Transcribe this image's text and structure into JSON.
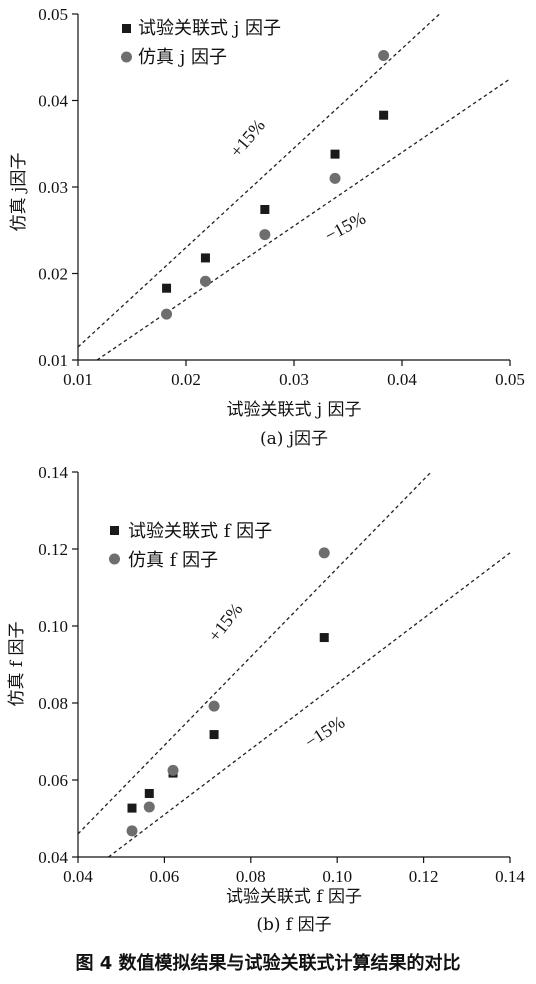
{
  "chart_data": [
    {
      "type": "scatter",
      "xlabel": "试验关联式 j 因子",
      "ylabel": "仿真 j因子",
      "xlim": [
        0.01,
        0.05
      ],
      "ylim": [
        0.01,
        0.05
      ],
      "xticks": [
        "0.01",
        "0.02",
        "0.03",
        "0.04",
        "0.05"
      ],
      "yticks": [
        "0.01",
        "0.02",
        "0.03",
        "0.04",
        "0.05"
      ],
      "grid": false,
      "legend_position": "top-left",
      "series": [
        {
          "name": "试验关联式 j 因子",
          "marker": "square",
          "color": "#1a1a1a",
          "x": [
            0.0182,
            0.0218,
            0.0273,
            0.0338,
            0.0383
          ],
          "y": [
            0.0183,
            0.0218,
            0.0274,
            0.0338,
            0.0383
          ]
        },
        {
          "name": "仿真 j 因子",
          "marker": "circle",
          "color": "#6e6e6e",
          "x": [
            0.0182,
            0.0218,
            0.0273,
            0.0338,
            0.0383
          ],
          "y": [
            0.0153,
            0.0191,
            0.0245,
            0.031,
            0.0452
          ]
        }
      ],
      "reference_lines": [
        {
          "label": "+15%",
          "slope": 1.15
        },
        {
          "label": "−15%",
          "slope": 0.85
        }
      ],
      "caption": "(a) j因子"
    },
    {
      "type": "scatter",
      "xlabel": "试验关联式 f 因子",
      "ylabel": "仿真 f 因子",
      "xlim": [
        0.04,
        0.14
      ],
      "ylim": [
        0.04,
        0.14
      ],
      "xticks": [
        "0.04",
        "0.06",
        "0.08",
        "0.10",
        "0.12",
        "0.14"
      ],
      "yticks": [
        "0.04",
        "0.06",
        "0.08",
        "0.10",
        "0.12",
        "0.14"
      ],
      "grid": false,
      "legend_position": "top-left",
      "series": [
        {
          "name": "试验关联式 f 因子",
          "marker": "square",
          "color": "#1a1a1a",
          "x": [
            0.0525,
            0.0565,
            0.062,
            0.0715,
            0.097
          ],
          "y": [
            0.0527,
            0.0565,
            0.0618,
            0.0718,
            0.097
          ]
        },
        {
          "name": "仿真 f 因子",
          "marker": "circle",
          "color": "#6e6e6e",
          "x": [
            0.0525,
            0.0565,
            0.062,
            0.0715,
            0.097
          ],
          "y": [
            0.0468,
            0.053,
            0.0625,
            0.0792,
            0.119
          ]
        }
      ],
      "reference_lines": [
        {
          "label": "+15%",
          "slope": 1.15
        },
        {
          "label": "−15%",
          "slope": 0.85
        }
      ],
      "caption": "(b) f 因子"
    }
  ],
  "figure_caption": "图 4   数值模拟结果与试验关联式计算结果的对比"
}
